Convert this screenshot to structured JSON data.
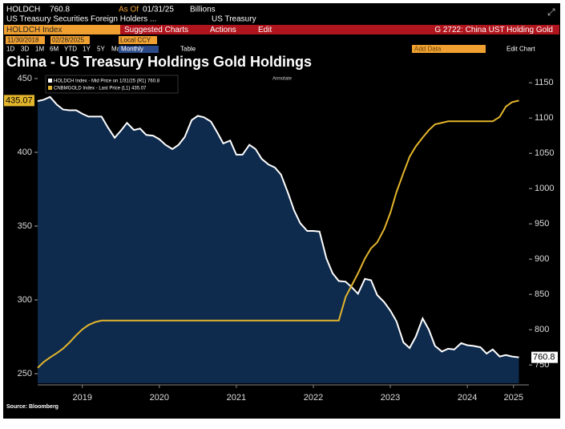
{
  "header": {
    "ticker": "HOLDCH",
    "as_of_label": "As Of",
    "as_of": "01/31/25",
    "units": "Billions",
    "description": "US Treasury Securities Foreign Holders ...",
    "source_name": "US Treasury",
    "security": "HOLDCH Index",
    "menu": [
      "Suggested Charts",
      "Actions",
      "Edit"
    ],
    "chart_name": "G 2722: China UST Holding Gold",
    "start_date": "11/30/2018",
    "end_date": "02/28/2025",
    "currency": "Local CCY",
    "ranges": [
      "1D",
      "3D",
      "1M",
      "6M",
      "YTD",
      "1Y",
      "5Y",
      "Max"
    ],
    "period": "Monthly",
    "table": "Table",
    "add_data": "Add Data",
    "edit_chart": "Edit Chart",
    "annotate": "Annotate"
  },
  "chart_data": {
    "type": "line",
    "title": "China - US Treasury Holdings Gold Holdings",
    "source": "Source: Bloomberg",
    "grid": false,
    "x": [
      2018.92,
      2019.0,
      2019.08,
      2019.17,
      2019.25,
      2019.33,
      2019.42,
      2019.5,
      2019.58,
      2019.67,
      2019.75,
      2019.83,
      2019.92,
      2020.0,
      2020.08,
      2020.17,
      2020.25,
      2020.33,
      2020.42,
      2020.5,
      2020.58,
      2020.67,
      2020.75,
      2020.83,
      2020.92,
      2021.0,
      2021.08,
      2021.17,
      2021.25,
      2021.33,
      2021.42,
      2021.5,
      2021.58,
      2021.67,
      2021.75,
      2021.83,
      2021.92,
      2022.0,
      2022.08,
      2022.17,
      2022.25,
      2022.33,
      2022.42,
      2022.5,
      2022.58,
      2022.67,
      2022.75,
      2022.83,
      2022.92,
      2023.0,
      2023.08,
      2023.17,
      2023.25,
      2023.33,
      2023.42,
      2023.5,
      2023.58,
      2023.67,
      2023.75,
      2023.83,
      2023.92,
      2024.0,
      2024.08,
      2024.17,
      2024.25,
      2024.33,
      2024.42,
      2024.5,
      2024.58,
      2024.67,
      2024.75,
      2024.83,
      2024.92,
      2025.0,
      2025.08,
      2025.17
    ],
    "xlim": [
      2018.92,
      2025.3
    ],
    "xticks": [
      {
        "value": 2019.5,
        "label": "2019"
      },
      {
        "value": 2020.5,
        "label": "2020"
      },
      {
        "value": 2021.5,
        "label": "2021"
      },
      {
        "value": 2022.5,
        "label": "2022"
      },
      {
        "value": 2023.5,
        "label": "2023"
      },
      {
        "value": 2024.5,
        "label": "2024"
      },
      {
        "value": 2025.1,
        "label": "2025"
      }
    ],
    "ylim": [
      243.5,
      454.3
    ],
    "yticks": [
      250,
      300,
      350,
      400,
      450
    ],
    "y2lim": [
      724,
      1165
    ],
    "y2ticks": [
      750,
      800,
      850,
      900,
      950,
      1000,
      1050,
      1100,
      1150
    ],
    "series": [
      {
        "name": "HOLDCH Index - Mid Price on 1/31/25 (R1) 760.8",
        "color": "#ffffff",
        "axis": "y2",
        "area": "#0e2a4c",
        "values": [
          1124,
          1126,
          1130,
          1119,
          1112,
          1111,
          1111,
          1106,
          1102,
          1102,
          1102,
          1087,
          1072,
          1082,
          1093,
          1083,
          1085,
          1076,
          1075,
          1070,
          1062,
          1056,
          1062,
          1073,
          1097,
          1103,
          1101,
          1095,
          1080,
          1064,
          1068,
          1048,
          1048,
          1062,
          1056,
          1042,
          1034,
          1030,
          1020,
          994,
          969,
          951,
          940,
          940,
          939,
          901,
          880,
          869,
          868,
          860,
          851,
          872,
          870,
          849,
          839,
          827,
          812,
          782,
          774,
          790,
          816,
          800,
          777,
          769,
          773,
          772,
          781,
          778,
          777,
          775,
          766,
          772,
          762,
          764,
          762,
          760.8
        ]
      },
      {
        "name": "CNBMGOLD Index - Last Price (L1) 435.07",
        "color": "#e3b52c",
        "values": [
          254,
          258,
          261,
          264,
          267,
          271,
          276,
          280,
          283,
          285,
          286,
          286,
          286,
          286,
          286,
          286,
          286,
          286,
          286,
          286,
          286,
          286,
          286,
          286,
          286,
          286,
          286,
          286,
          286,
          286,
          286,
          286,
          286,
          286,
          286,
          286,
          286,
          286,
          286,
          286,
          286,
          286,
          286,
          286,
          286,
          286,
          286,
          286,
          302,
          310,
          318,
          328,
          335,
          339,
          348,
          359,
          373,
          386,
          397,
          404,
          410,
          415,
          419,
          420,
          421,
          421,
          421,
          421,
          421,
          421,
          421,
          421,
          424,
          431,
          434,
          435.07
        ]
      }
    ]
  }
}
